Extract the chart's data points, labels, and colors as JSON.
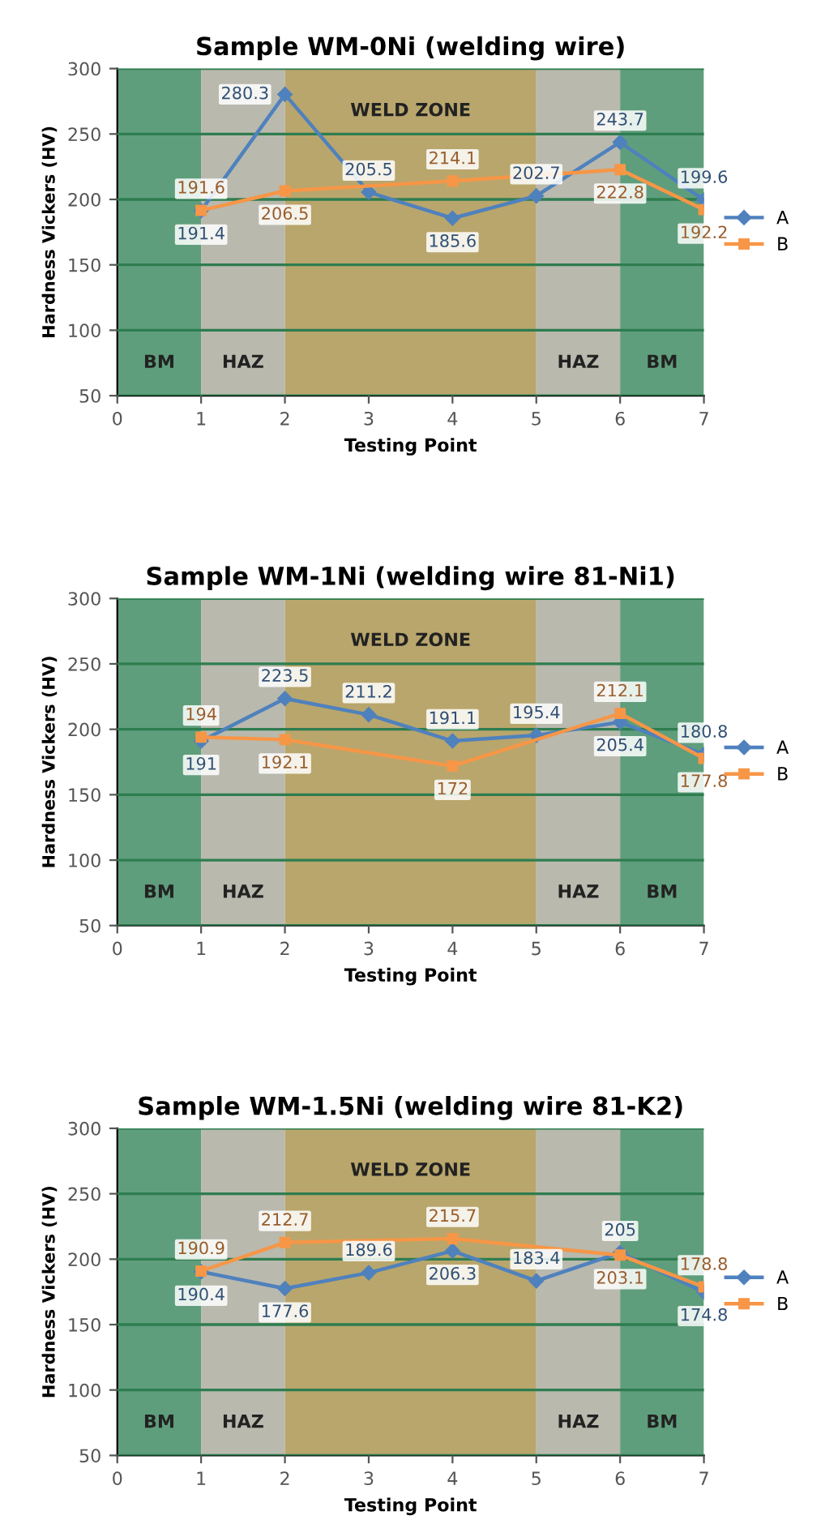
{
  "chart_data": [
    {
      "type": "line",
      "title": "Sample WM-0Ni (welding wire)",
      "xlabel": "Testing Point",
      "ylabel": "Hardness Vickers (HV)",
      "xlim": [
        0,
        7
      ],
      "xticks": [
        0,
        1,
        2,
        3,
        4,
        5,
        6,
        7
      ],
      "ylim": [
        50,
        300
      ],
      "yticks": [
        50,
        100,
        150,
        200,
        250,
        300
      ],
      "grid": "y",
      "legend": "right",
      "data_labels": true,
      "bands": [
        {
          "axis": "x",
          "from": 0,
          "to": 1,
          "label": "BM",
          "color": "#5f9e7c"
        },
        {
          "axis": "x",
          "from": 1,
          "to": 2,
          "label": "HAZ",
          "color": "#b9b9ae"
        },
        {
          "axis": "x",
          "from": 2,
          "to": 5,
          "label": "WELD ZONE",
          "color": "#b9a66c"
        },
        {
          "axis": "x",
          "from": 5,
          "to": 6,
          "label": "HAZ",
          "color": "#b9b9ae"
        },
        {
          "axis": "x",
          "from": 6,
          "to": 7,
          "label": "BM",
          "color": "#5f9e7c"
        }
      ],
      "series": [
        {
          "name": "A",
          "color": "#4f81bd",
          "marker": "diamond",
          "x": [
            1,
            2,
            3,
            4,
            5,
            6,
            7
          ],
          "values": [
            191.4,
            280.3,
            205.5,
            185.6,
            202.7,
            243.7,
            199.6
          ]
        },
        {
          "name": "B",
          "color": "#f79646",
          "marker": "square",
          "x": [
            1,
            2,
            4,
            6,
            7
          ],
          "values": [
            191.6,
            206.5,
            214.1,
            222.8,
            192.2
          ]
        }
      ]
    },
    {
      "type": "line",
      "title": "Sample WM-1Ni (welding wire 81-Ni1)",
      "xlabel": "Testing Point",
      "ylabel": "Hardness Vickers (HV)",
      "xlim": [
        0,
        7
      ],
      "xticks": [
        0,
        1,
        2,
        3,
        4,
        5,
        6,
        7
      ],
      "ylim": [
        50,
        300
      ],
      "yticks": [
        50,
        100,
        150,
        200,
        250,
        300
      ],
      "grid": "y",
      "legend": "right",
      "data_labels": true,
      "bands": [
        {
          "axis": "x",
          "from": 0,
          "to": 1,
          "label": "BM",
          "color": "#5f9e7c"
        },
        {
          "axis": "x",
          "from": 1,
          "to": 2,
          "label": "HAZ",
          "color": "#b9b9ae"
        },
        {
          "axis": "x",
          "from": 2,
          "to": 5,
          "label": "WELD ZONE",
          "color": "#b9a66c"
        },
        {
          "axis": "x",
          "from": 5,
          "to": 6,
          "label": "HAZ",
          "color": "#b9b9ae"
        },
        {
          "axis": "x",
          "from": 6,
          "to": 7,
          "label": "BM",
          "color": "#5f9e7c"
        }
      ],
      "series": [
        {
          "name": "A",
          "color": "#4f81bd",
          "marker": "diamond",
          "x": [
            1,
            2,
            3,
            4,
            5,
            6,
            7
          ],
          "values": [
            191,
            223.5,
            211.2,
            191.1,
            195.4,
            205.4,
            180.8
          ]
        },
        {
          "name": "B",
          "color": "#f79646",
          "marker": "square",
          "x": [
            1,
            2,
            4,
            6,
            7
          ],
          "values": [
            194,
            192.1,
            172,
            212.1,
            177.8
          ]
        }
      ]
    },
    {
      "type": "line",
      "title": "Sample WM-1.5Ni (welding wire 81-K2)",
      "xlabel": "Testing Point",
      "ylabel": "Hardness Vickers (HV)",
      "xlim": [
        0,
        7
      ],
      "xticks": [
        0,
        1,
        2,
        3,
        4,
        5,
        6,
        7
      ],
      "ylim": [
        50,
        300
      ],
      "yticks": [
        50,
        100,
        150,
        200,
        250,
        300
      ],
      "grid": "y",
      "legend": "right",
      "data_labels": true,
      "bands": [
        {
          "axis": "x",
          "from": 0,
          "to": 1,
          "label": "BM",
          "color": "#5f9e7c"
        },
        {
          "axis": "x",
          "from": 1,
          "to": 2,
          "label": "HAZ",
          "color": "#b9b9ae"
        },
        {
          "axis": "x",
          "from": 2,
          "to": 5,
          "label": "WELD ZONE",
          "color": "#b9a66c"
        },
        {
          "axis": "x",
          "from": 5,
          "to": 6,
          "label": "HAZ",
          "color": "#b9b9ae"
        },
        {
          "axis": "x",
          "from": 6,
          "to": 7,
          "label": "BM",
          "color": "#5f9e7c"
        }
      ],
      "series": [
        {
          "name": "A",
          "color": "#4f81bd",
          "marker": "diamond",
          "x": [
            1,
            2,
            3,
            4,
            5,
            6,
            7
          ],
          "values": [
            190.4,
            177.6,
            189.6,
            206.3,
            183.4,
            205,
            174.8
          ]
        },
        {
          "name": "B",
          "color": "#f79646",
          "marker": "square",
          "x": [
            1,
            2,
            4,
            6,
            7
          ],
          "values": [
            190.9,
            212.7,
            215.7,
            203.1,
            178.8
          ]
        }
      ]
    }
  ]
}
